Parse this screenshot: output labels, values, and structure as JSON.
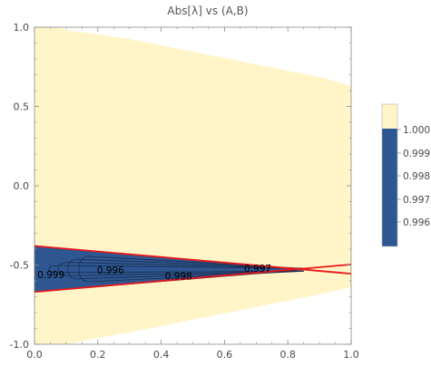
{
  "chart_data": {
    "type": "contour",
    "title": "Abs[λ] vs (A,B)",
    "xlim": [
      0.0,
      1.0
    ],
    "ylim": [
      -1.0,
      1.0
    ],
    "x_ticks": [
      "0.0",
      "0.2",
      "0.4",
      "0.6",
      "0.8",
      "1.0"
    ],
    "y_ticks": [
      "1.0",
      "0.5",
      "0.0",
      "-0.5",
      "-1.0"
    ],
    "region_color": "#fff5c8",
    "contour_fill_color": "#2e5791",
    "contour_line_color": "#1a2d4d",
    "boundary_line_color": "#e8161b",
    "valid_region": {
      "top_edge": [
        {
          "x": 0.0,
          "y": 1.0
        },
        {
          "x": 0.08,
          "y": 1.0
        },
        {
          "x": 0.1,
          "y": 0.98
        },
        {
          "x": 0.2,
          "y": 0.955
        },
        {
          "x": 0.3,
          "y": 0.925
        },
        {
          "x": 0.4,
          "y": 0.885
        },
        {
          "x": 0.5,
          "y": 0.845
        },
        {
          "x": 0.6,
          "y": 0.805
        },
        {
          "x": 0.7,
          "y": 0.765
        },
        {
          "x": 0.8,
          "y": 0.725
        },
        {
          "x": 0.9,
          "y": 0.685
        },
        {
          "x": 1.0,
          "y": 0.63
        }
      ],
      "bottom_edge": [
        {
          "x": 1.0,
          "y": -0.64
        },
        {
          "x": 0.9,
          "y": -0.685
        },
        {
          "x": 0.8,
          "y": -0.725
        },
        {
          "x": 0.7,
          "y": -0.765
        },
        {
          "x": 0.6,
          "y": -0.805
        },
        {
          "x": 0.5,
          "y": -0.845
        },
        {
          "x": 0.4,
          "y": -0.885
        },
        {
          "x": 0.3,
          "y": -0.925
        },
        {
          "x": 0.2,
          "y": -0.96
        },
        {
          "x": 0.1,
          "y": -1.0
        },
        {
          "x": 0.0,
          "y": -1.0
        }
      ]
    },
    "wedge": {
      "apex": {
        "x": 0.85,
        "y": -0.53
      },
      "left_top_y": -0.38,
      "left_bottom_y": -0.67
    },
    "contour_lines": [
      {
        "x0": 0.045,
        "half_width": 0.022
      },
      {
        "x0": 0.075,
        "half_width": 0.042
      },
      {
        "x0": 0.105,
        "half_width": 0.062
      },
      {
        "x0": 0.14,
        "half_width": 0.08
      }
    ],
    "boundary_lines": [
      {
        "points": [
          {
            "x": 0.0,
            "y": -0.38
          },
          {
            "x": 1.0,
            "y": -0.555
          }
        ]
      },
      {
        "points": [
          {
            "x": 0.0,
            "y": -0.67
          },
          {
            "x": 1.0,
            "y": -0.497
          }
        ]
      }
    ],
    "contour_labels": [
      {
        "text": "0.999",
        "x": 0.052,
        "y": -0.583
      },
      {
        "text": "0.996",
        "x": 0.24,
        "y": -0.555
      },
      {
        "text": "0.998",
        "x": 0.455,
        "y": -0.59
      },
      {
        "text": "0.997",
        "x": 0.705,
        "y": -0.542
      }
    ],
    "legend": {
      "labels": [
        "1.000",
        "0.999",
        "0.998",
        "0.997",
        "0.996"
      ],
      "colors": [
        "#fff5c8",
        "#2e5791"
      ]
    }
  }
}
